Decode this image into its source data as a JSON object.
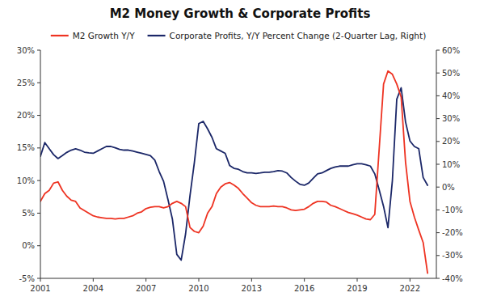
{
  "chart_data": {
    "type": "line",
    "title": "M2 Money Growth & Corporate Profits",
    "x": [
      2001.0,
      2001.25,
      2001.5,
      2001.75,
      2002.0,
      2002.25,
      2002.5,
      2002.75,
      2003.0,
      2003.25,
      2003.5,
      2003.75,
      2004.0,
      2004.25,
      2004.5,
      2004.75,
      2005.0,
      2005.25,
      2005.5,
      2005.75,
      2006.0,
      2006.25,
      2006.5,
      2006.75,
      2007.0,
      2007.25,
      2007.5,
      2007.75,
      2008.0,
      2008.25,
      2008.5,
      2008.75,
      2009.0,
      2009.25,
      2009.5,
      2009.75,
      2010.0,
      2010.25,
      2010.5,
      2010.75,
      2011.0,
      2011.25,
      2011.5,
      2011.75,
      2012.0,
      2012.25,
      2012.5,
      2012.75,
      2013.0,
      2013.25,
      2013.5,
      2013.75,
      2014.0,
      2014.25,
      2014.5,
      2014.75,
      2015.0,
      2015.25,
      2015.5,
      2015.75,
      2016.0,
      2016.25,
      2016.5,
      2016.75,
      2017.0,
      2017.25,
      2017.5,
      2017.75,
      2018.0,
      2018.25,
      2018.5,
      2018.75,
      2019.0,
      2019.25,
      2019.5,
      2019.75,
      2020.0,
      2020.25,
      2020.5,
      2020.75,
      2021.0,
      2021.25,
      2021.5,
      2021.75,
      2022.0,
      2022.25,
      2022.5,
      2022.75,
      2023.0
    ],
    "series": [
      {
        "name": "M2 Growth Y/Y",
        "color": "#EE3322",
        "values": [
          0.068,
          0.08,
          0.085,
          0.096,
          0.098,
          0.085,
          0.076,
          0.07,
          0.068,
          0.058,
          0.054,
          0.05,
          0.046,
          0.044,
          0.043,
          0.042,
          0.042,
          0.041,
          0.042,
          0.042,
          0.044,
          0.046,
          0.05,
          0.052,
          0.057,
          0.059,
          0.06,
          0.06,
          0.058,
          0.06,
          0.065,
          0.068,
          0.065,
          0.06,
          0.028,
          0.022,
          0.02,
          0.03,
          0.05,
          0.06,
          0.08,
          0.09,
          0.095,
          0.097,
          0.093,
          0.088,
          0.08,
          0.073,
          0.066,
          0.062,
          0.06,
          0.06,
          0.06,
          0.061,
          0.06,
          0.06,
          0.058,
          0.055,
          0.054,
          0.055,
          0.056,
          0.06,
          0.065,
          0.068,
          0.068,
          0.067,
          0.062,
          0.06,
          0.057,
          0.054,
          0.051,
          0.049,
          0.047,
          0.044,
          0.041,
          0.04,
          0.048,
          0.148,
          0.248,
          0.268,
          0.263,
          0.248,
          0.228,
          0.128,
          0.068,
          0.044,
          0.024,
          0.005,
          -0.042
        ]
      },
      {
        "name": "Corporate Profits, Y/Y Percent Change (2-Quarter Lag, Right)",
        "color": "#1B2768",
        "axis": "y2",
        "values": [
          0.135,
          0.195,
          0.168,
          0.142,
          0.125,
          0.138,
          0.152,
          0.162,
          0.168,
          0.162,
          0.153,
          0.15,
          0.148,
          0.158,
          0.168,
          0.178,
          0.178,
          0.172,
          0.165,
          0.162,
          0.162,
          0.158,
          0.153,
          0.148,
          0.143,
          0.138,
          0.118,
          0.068,
          0.025,
          -0.055,
          -0.14,
          -0.295,
          -0.32,
          -0.205,
          -0.038,
          0.108,
          0.278,
          0.288,
          0.255,
          0.218,
          0.168,
          0.158,
          0.148,
          0.095,
          0.082,
          0.078,
          0.068,
          0.062,
          0.062,
          0.06,
          0.062,
          0.065,
          0.065,
          0.068,
          0.072,
          0.07,
          0.062,
          0.042,
          0.026,
          0.012,
          0.008,
          0.018,
          0.038,
          0.058,
          0.062,
          0.072,
          0.082,
          0.088,
          0.092,
          0.092,
          0.092,
          0.098,
          0.102,
          0.102,
          0.098,
          0.092,
          0.058,
          -0.012,
          -0.085,
          -0.178,
          0.028,
          0.385,
          0.435,
          0.285,
          0.202,
          0.178,
          0.168,
          0.042,
          0.008
        ]
      }
    ],
    "xlim": [
      2001.0,
      2023.5
    ],
    "xticks": [
      2001,
      2004,
      2007,
      2010,
      2013,
      2016,
      2019,
      2022
    ],
    "ylim": [
      -0.05,
      0.3
    ],
    "yticks": [
      {
        "value": -0.05,
        "label": "-5%"
      },
      {
        "value": 0.0,
        "label": "0%"
      },
      {
        "value": 0.05,
        "label": "5%"
      },
      {
        "value": 0.1,
        "label": "10%"
      },
      {
        "value": 0.15,
        "label": "15%"
      },
      {
        "value": 0.2,
        "label": "20%"
      },
      {
        "value": 0.25,
        "label": "25%"
      },
      {
        "value": 0.3,
        "label": "30%"
      }
    ],
    "y2lim": [
      -0.4,
      0.6
    ],
    "y2ticks": [
      {
        "value": -0.4,
        "label": "-40%"
      },
      {
        "value": -0.3,
        "label": "-30%"
      },
      {
        "value": -0.2,
        "label": "-20%"
      },
      {
        "value": -0.1,
        "label": "-10%"
      },
      {
        "value": 0.0,
        "label": "0%"
      },
      {
        "value": 0.1,
        "label": "10%"
      },
      {
        "value": 0.2,
        "label": "20%"
      },
      {
        "value": 0.3,
        "label": "30%"
      },
      {
        "value": 0.4,
        "label": "40%"
      },
      {
        "value": 0.5,
        "label": "50%"
      },
      {
        "value": 0.6,
        "label": "60%"
      }
    ],
    "grid": false,
    "legend": "top"
  }
}
